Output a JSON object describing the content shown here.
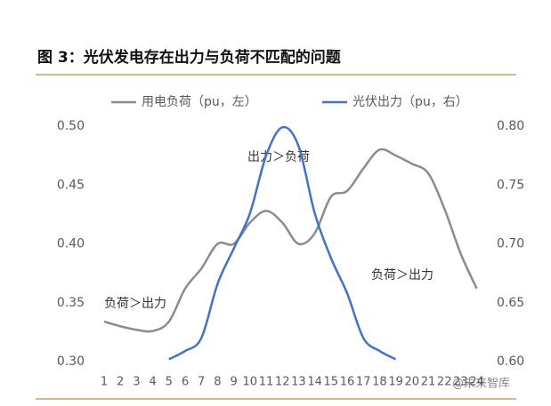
{
  "chart_data": {
    "type": "line",
    "title": "图 3：光伏发电存在出力与负荷不匹配的问题",
    "categories": [
      "1",
      "2",
      "3",
      "4",
      "5",
      "6",
      "7",
      "8",
      "9",
      "10",
      "11",
      "12",
      "13",
      "14",
      "15",
      "16",
      "17",
      "18",
      "19",
      "20",
      "21",
      "22",
      "23",
      "24"
    ],
    "series": [
      {
        "name": "用电负荷（pu，左）",
        "color": "#8c8c8c",
        "values": [
          0.334,
          0.33,
          0.327,
          0.326,
          0.334,
          0.362,
          0.379,
          0.4,
          0.4,
          0.418,
          0.428,
          0.418,
          0.4,
          0.409,
          0.44,
          0.445,
          0.464,
          0.48,
          0.475,
          0.468,
          0.46,
          0.43,
          0.392,
          0.362
        ]
      },
      {
        "name": "光伏出力（pu，右）",
        "color": "#4472c4",
        "axis": "y2",
        "values": [
          null,
          null,
          null,
          null,
          0.602,
          0.609,
          0.62,
          0.666,
          0.696,
          0.726,
          0.775,
          0.799,
          0.783,
          0.726,
          0.688,
          0.658,
          0.62,
          0.609,
          0.602,
          null,
          null,
          null,
          null,
          null
        ]
      }
    ],
    "ylim": [
      0.3,
      0.5
    ],
    "yticks": [
      {
        "value": 0.3,
        "label": "0.30"
      },
      {
        "value": 0.35,
        "label": "0.35"
      },
      {
        "value": 0.4,
        "label": "0.40"
      },
      {
        "value": 0.45,
        "label": "0.45"
      },
      {
        "value": 0.5,
        "label": "0.50"
      }
    ],
    "y2lim": [
      0.6,
      0.8
    ],
    "y2ticks": [
      {
        "value": 0.6,
        "label": "0.60"
      },
      {
        "value": 0.65,
        "label": "0.65"
      },
      {
        "value": 0.7,
        "label": "0.70"
      },
      {
        "value": 0.75,
        "label": "0.75"
      },
      {
        "value": 0.8,
        "label": "0.80"
      }
    ],
    "annotations": [
      "出力＞负荷",
      "负荷＞出力",
      "负荷＞出力"
    ],
    "watermark": "@未来智库"
  }
}
